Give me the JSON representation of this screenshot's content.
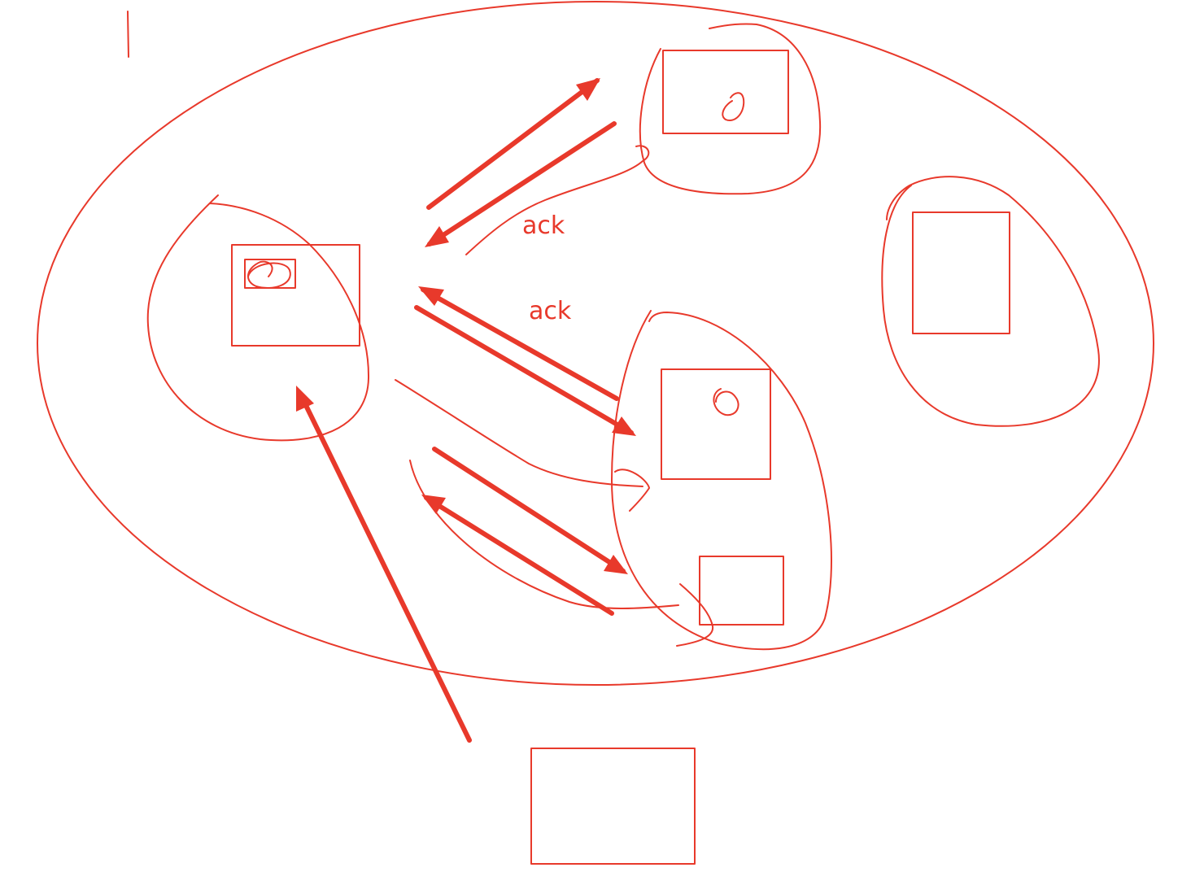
{
  "labels": {
    "ack_upper": "ack",
    "ack_lower": "ack"
  },
  "colors": {
    "ink": "#e8392b",
    "background": "#ffffff"
  }
}
